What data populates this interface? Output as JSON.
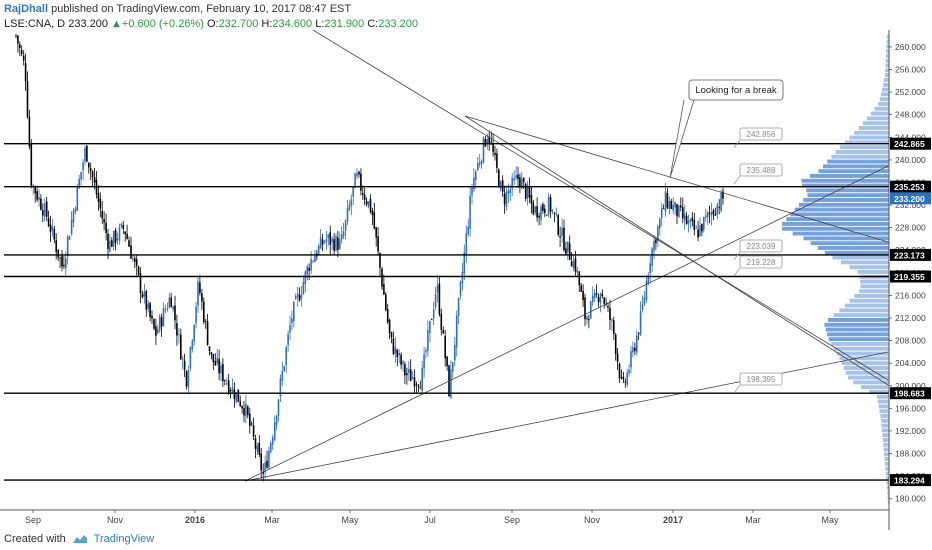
{
  "header": {
    "author": "RajDhall",
    "published": "published on TradingView.com, February 10, 2017 08:47 EST",
    "symbol": "LSE:CNA, D",
    "last": "233.200",
    "change": "+0.600 (+0.26%)",
    "o_label": "O:",
    "o": "232.700",
    "h_label": "H:",
    "h": "234.600",
    "l_label": "L:",
    "l": "231.900",
    "c_label": "C:",
    "c": "233.200"
  },
  "footer": {
    "created_with": "Created with",
    "brand": "TradingView"
  },
  "colors": {
    "up": "#2b6fc7",
    "down": "#000000",
    "volume_profile": "#5b8fd8",
    "last_price_tag": "#2b6fc7",
    "level_tag": "#000000"
  },
  "chart_data": {
    "type": "candlestick",
    "ylim": [
      178,
      263
    ],
    "y_ticks": [
      "180.000",
      "184.000",
      "188.000",
      "192.000",
      "196.000",
      "200.000",
      "204.000",
      "208.000",
      "212.000",
      "216.000",
      "220.000",
      "224.000",
      "228.000",
      "232.000",
      "236.000",
      "240.000",
      "244.000",
      "248.000",
      "252.000",
      "256.000",
      "260.000"
    ],
    "x_ticks": [
      "Sep",
      "Nov",
      "2016",
      "Mar",
      "May",
      "Jul",
      "Sep",
      "Nov",
      "2017",
      "Mar",
      "May"
    ],
    "horizontal_levels": [
      {
        "value": 242.865,
        "label": "242.865"
      },
      {
        "value": 235.253,
        "label": "235.253"
      },
      {
        "value": 223.173,
        "label": "223.173"
      },
      {
        "value": 219.355,
        "label": "219.355"
      },
      {
        "value": 198.683,
        "label": "198.683"
      },
      {
        "value": 183.294,
        "label": "183.294"
      }
    ],
    "last_price": {
      "value": 233.2,
      "label": "233.200"
    },
    "price_labels": [
      "242.856",
      "235.488",
      "223.039",
      "219.228",
      "198.395"
    ],
    "annotation": "Looking for a break",
    "path": [
      [
        0,
        262
      ],
      [
        6,
        256
      ],
      [
        10,
        236
      ],
      [
        20,
        230
      ],
      [
        30,
        221
      ],
      [
        45,
        242
      ],
      [
        60,
        225
      ],
      [
        70,
        228
      ],
      [
        80,
        218
      ],
      [
        90,
        209
      ],
      [
        100,
        216
      ],
      [
        110,
        201
      ],
      [
        118,
        218
      ],
      [
        126,
        205
      ],
      [
        136,
        201
      ],
      [
        148,
        196
      ],
      [
        160,
        184
      ],
      [
        166,
        192
      ],
      [
        178,
        212
      ],
      [
        190,
        222
      ],
      [
        200,
        226
      ],
      [
        210,
        225
      ],
      [
        220,
        237
      ],
      [
        230,
        231
      ],
      [
        242,
        208
      ],
      [
        252,
        202
      ],
      [
        262,
        201
      ],
      [
        272,
        218
      ],
      [
        280,
        199
      ],
      [
        295,
        236
      ],
      [
        305,
        245
      ],
      [
        315,
        233
      ],
      [
        325,
        237
      ],
      [
        335,
        231
      ],
      [
        345,
        232
      ],
      [
        355,
        225
      ],
      [
        362,
        221
      ],
      [
        368,
        212
      ],
      [
        378,
        217
      ],
      [
        386,
        210
      ],
      [
        392,
        199
      ],
      [
        398,
        205
      ],
      [
        404,
        212
      ],
      [
        410,
        223
      ],
      [
        420,
        233
      ],
      [
        430,
        230
      ],
      [
        440,
        227
      ],
      [
        450,
        231
      ],
      [
        457,
        233.2
      ]
    ]
  }
}
